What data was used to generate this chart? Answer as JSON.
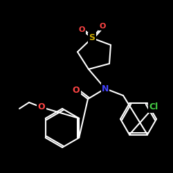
{
  "bg": "#000000",
  "bond_color": "#ffffff",
  "atom_colors": {
    "O": "#ff4444",
    "S": "#ccaa00",
    "N": "#4444ff",
    "Cl": "#44cc44",
    "C": "#ffffff"
  },
  "bond_width": 1.5,
  "font_size": 9,
  "figsize": [
    2.5,
    2.5
  ],
  "dpi": 100
}
